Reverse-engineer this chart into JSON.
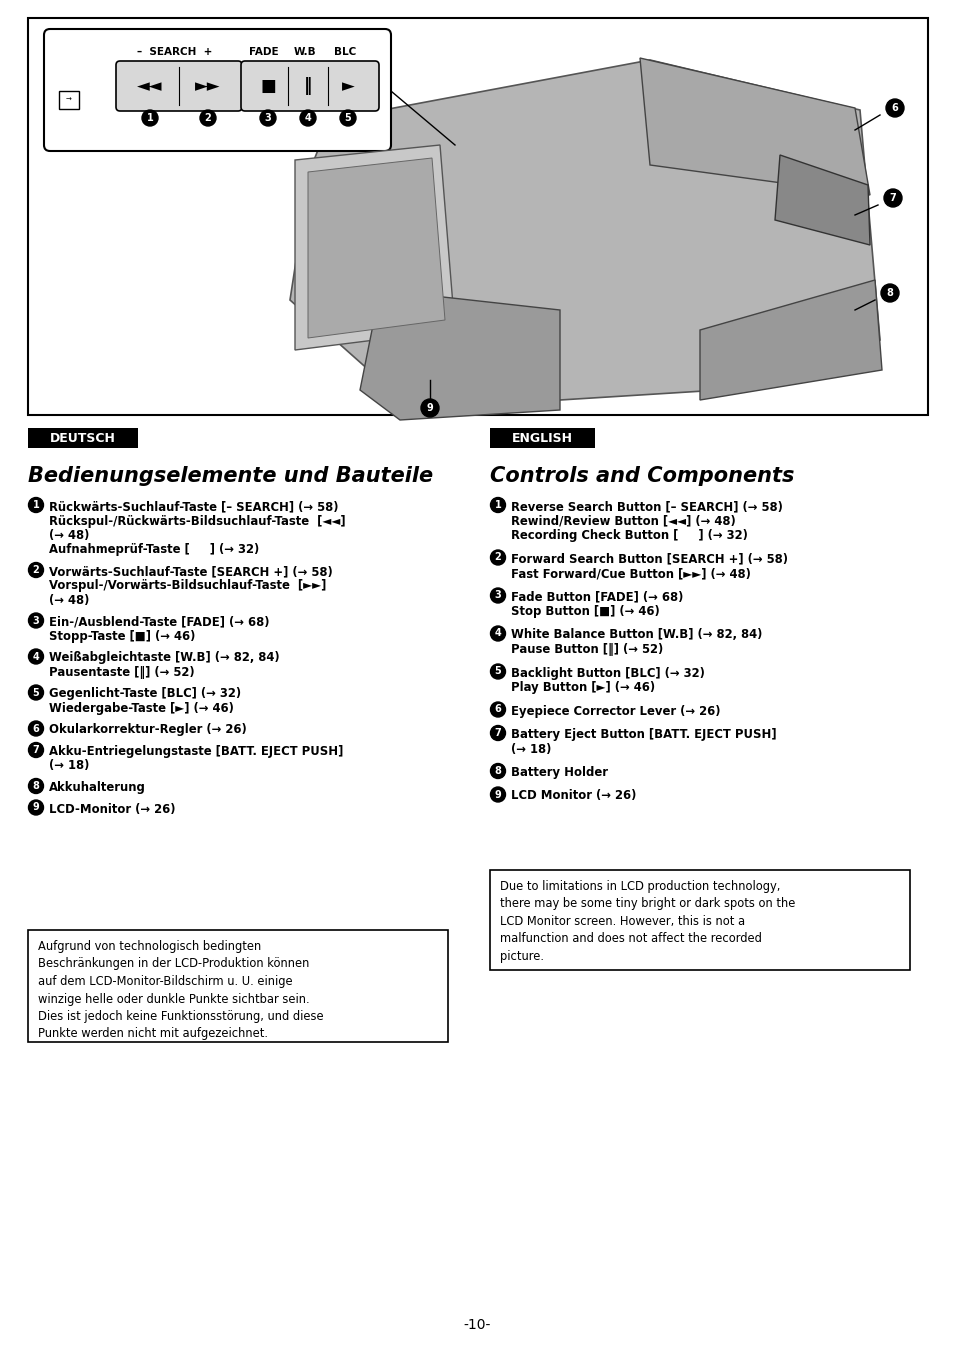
{
  "bg_color": "#ffffff",
  "page_number": "-10-",
  "deutsch_header": "DEUTSCH",
  "english_header": "ENGLISH",
  "deutsch_title": "Bedienungselemente und Bauteile",
  "english_title": "Controls and Components",
  "deutsch_items": [
    {
      "num": "1",
      "lines": [
        "Rückwärts-Suchlauf-Taste [– SEARCH] (→ 58)",
        "Rückspul-/Rückwärts-Bildsuchlauf-Taste  [◄◄]",
        "(→ 48)",
        "Aufnahmeprüf-Taste [     ] (→ 32)"
      ]
    },
    {
      "num": "2",
      "lines": [
        "Vorwärts-Suchlauf-Taste [SEARCH +] (→ 58)",
        "Vorspul-/Vorwärts-Bildsuchlauf-Taste  [►►]",
        "(→ 48)"
      ]
    },
    {
      "num": "3",
      "lines": [
        "Ein-/Ausblend-Taste [FADE] (→ 68)",
        "Stopp-Taste [■] (→ 46)"
      ]
    },
    {
      "num": "4",
      "lines": [
        "Weißabgleichtaste [W.B] (→ 82, 84)",
        "Pausentaste [‖] (→ 52)"
      ]
    },
    {
      "num": "5",
      "lines": [
        "Gegenlicht-Taste [BLC] (→ 32)",
        "Wiedergabe-Taste [►] (→ 46)"
      ]
    },
    {
      "num": "6",
      "lines": [
        "Okularkorrektur-Regler (→ 26)"
      ]
    },
    {
      "num": "7",
      "lines": [
        "Akku-Entriegelungstaste [BATT. EJECT PUSH]",
        "(→ 18)"
      ]
    },
    {
      "num": "8",
      "lines": [
        "Akkuhalterung"
      ]
    },
    {
      "num": "9",
      "lines": [
        "LCD-Monitor (→ 26)"
      ]
    }
  ],
  "english_items": [
    {
      "num": "1",
      "lines": [
        "Reverse Search Button [– SEARCH] (→ 58)",
        "Rewind/Review Button [◄◄] (→ 48)",
        "Recording Check Button [     ] (→ 32)"
      ]
    },
    {
      "num": "2",
      "lines": [
        "Forward Search Button [SEARCH +] (→ 58)",
        "Fast Forward/Cue Button [►►] (→ 48)"
      ]
    },
    {
      "num": "3",
      "lines": [
        "Fade Button [FADE] (→ 68)",
        "Stop Button [■] (→ 46)"
      ]
    },
    {
      "num": "4",
      "lines": [
        "White Balance Button [W.B] (→ 82, 84)",
        "Pause Button [‖] (→ 52)"
      ]
    },
    {
      "num": "5",
      "lines": [
        "Backlight Button [BLC] (→ 32)",
        "Play Button [►] (→ 46)"
      ]
    },
    {
      "num": "6",
      "lines": [
        "Eyepiece Corrector Lever (→ 26)"
      ]
    },
    {
      "num": "7",
      "lines": [
        "Battery Eject Button [BATT. EJECT PUSH]",
        "(→ 18)"
      ]
    },
    {
      "num": "8",
      "lines": [
        "Battery Holder"
      ]
    },
    {
      "num": "9",
      "lines": [
        "LCD Monitor (→ 26)"
      ]
    }
  ],
  "deutsch_note": "Aufgrund von technologisch bedingten\nBeschränkungen in der LCD-Produktion können\nauf dem LCD-Monitor-Bildschirm u. U. einige\nwinzige helle oder dunkle Punkte sichtbar sein.\nDies ist jedoch keine Funktionsstörung, und diese\nPunkte werden nicht mit aufgezeichnet.",
  "english_note": "Due to limitations in LCD production technology,\nthere may be some tiny bright or dark spots on the\nLCD Monitor screen. However, this is not a\nmalfunction and does not affect the recorded\npicture."
}
